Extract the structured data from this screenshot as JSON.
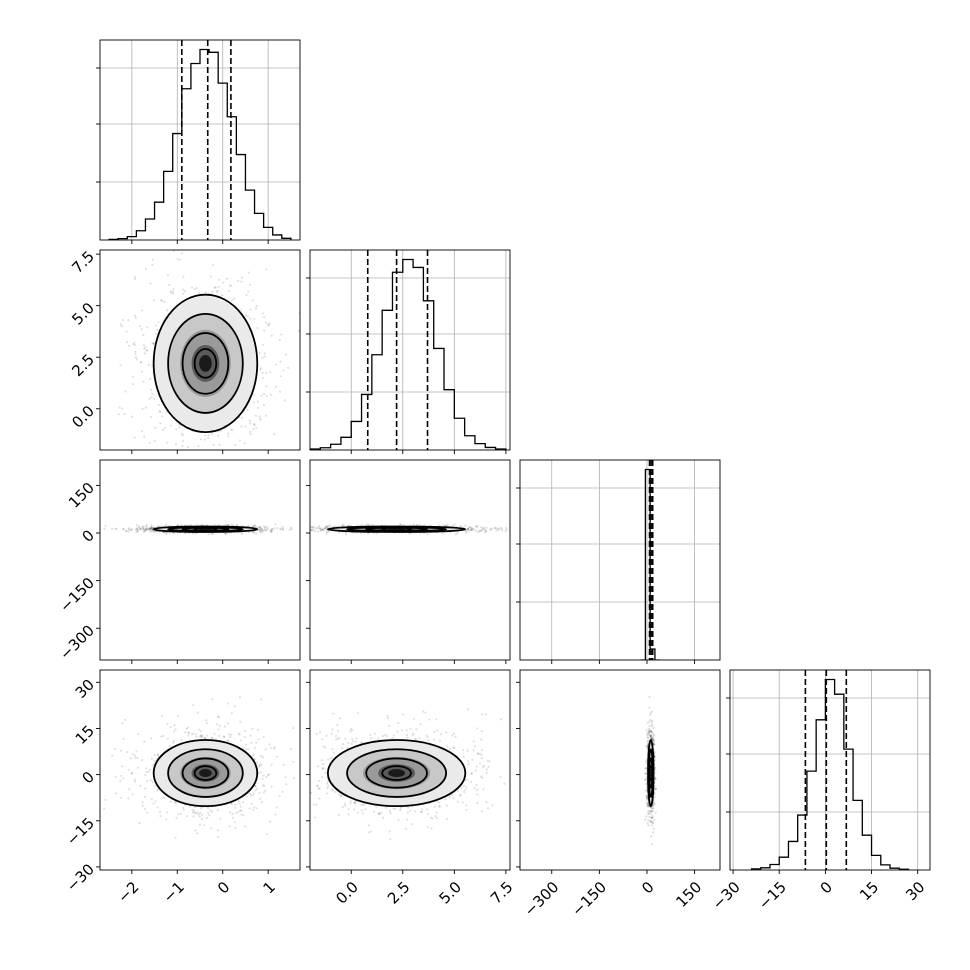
{
  "chart_data": {
    "type": "corner",
    "grid": true,
    "parameters": [
      {
        "index": 0,
        "range": [
          -2.7,
          1.7
        ],
        "ticks": [
          -2,
          -1,
          0,
          1
        ],
        "tick_labels": [
          "−2",
          "−1",
          "0",
          "1"
        ],
        "quantiles": [
          -0.9,
          -0.33,
          0.18
        ],
        "hist_bins": [
          -2.5,
          -2.3,
          -2.1,
          -1.9,
          -1.7,
          -1.5,
          -1.3,
          -1.1,
          -0.9,
          -0.7,
          -0.5,
          -0.3,
          -0.1,
          0.1,
          0.3,
          0.5,
          0.7,
          0.9,
          1.1,
          1.3,
          1.5
        ],
        "hist_counts": [
          2,
          5,
          12,
          33,
          75,
          135,
          245,
          380,
          540,
          630,
          680,
          670,
          560,
          440,
          305,
          178,
          95,
          45,
          18,
          6
        ]
      },
      {
        "index": 1,
        "range": [
          -2.0,
          7.7
        ],
        "ticks": [
          0.0,
          2.5,
          5.0,
          7.5
        ],
        "tick_labels": [
          "0.0",
          "2.5",
          "5.0",
          "7.5"
        ],
        "quantiles": [
          0.8,
          2.2,
          3.7
        ],
        "hist_bins": [
          -2.0,
          -1.5,
          -1.0,
          -0.5,
          0.0,
          0.5,
          1.0,
          1.5,
          2.0,
          2.5,
          3.0,
          3.5,
          4.0,
          4.5,
          5.0,
          5.5,
          6.0,
          6.5,
          7.0,
          7.5
        ],
        "hist_counts": [
          3,
          7,
          18,
          40,
          90,
          175,
          300,
          440,
          560,
          600,
          575,
          470,
          320,
          190,
          100,
          45,
          20,
          8,
          3
        ]
      },
      {
        "index": 2,
        "range": [
          -400,
          230
        ],
        "ticks": [
          -300,
          -150,
          0,
          150
        ],
        "tick_labels": [
          "−300",
          "−150",
          "0",
          "150"
        ],
        "quantiles": [
          8,
          13,
          18
        ],
        "hist_bins": [
          -20,
          -5,
          10,
          25,
          40
        ],
        "hist_counts": [
          0,
          950,
          55,
          0
        ]
      },
      {
        "index": 3,
        "range": [
          -31,
          34
        ],
        "ticks": [
          -30,
          -15,
          0,
          15,
          30
        ],
        "tick_labels": [
          "−30",
          "−15",
          "0",
          "15",
          "30"
        ],
        "quantiles": [
          -6.5,
          0.3,
          6.8
        ],
        "hist_bins": [
          -24,
          -21,
          -18,
          -15,
          -12,
          -9,
          -6,
          -3,
          0,
          3,
          6,
          9,
          12,
          15,
          18,
          21,
          24,
          27
        ],
        "hist_counts": [
          3,
          6,
          15,
          35,
          78,
          150,
          270,
          410,
          520,
          480,
          330,
          190,
          95,
          40,
          14,
          5,
          2
        ]
      }
    ],
    "pairs": [
      {
        "x": 0,
        "y": 1,
        "center": [
          -0.38,
          2.2
        ],
        "sigma": [
          0.53,
          1.55
        ]
      },
      {
        "x": 0,
        "y": 2,
        "center": [
          -0.38,
          12
        ],
        "sigma": [
          0.53,
          4
        ]
      },
      {
        "x": 1,
        "y": 2,
        "center": [
          2.2,
          12
        ],
        "sigma": [
          1.55,
          4
        ]
      },
      {
        "x": 0,
        "y": 3,
        "center": [
          -0.38,
          0.5
        ],
        "sigma": [
          0.53,
          5.0
        ]
      },
      {
        "x": 1,
        "y": 3,
        "center": [
          2.2,
          0.5
        ],
        "sigma": [
          1.55,
          5.0
        ]
      },
      {
        "x": 2,
        "y": 3,
        "center": [
          12,
          0.5
        ],
        "sigma": [
          4,
          5.0
        ]
      }
    ]
  }
}
